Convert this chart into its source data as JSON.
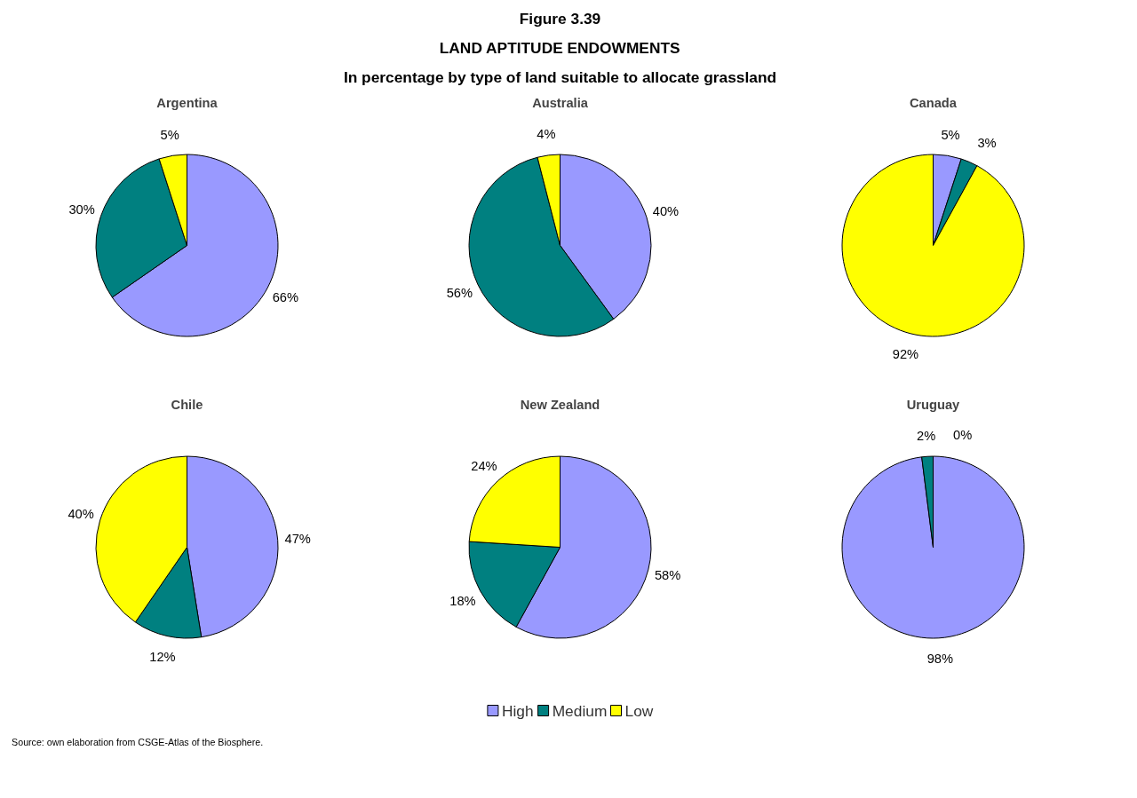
{
  "chart_data": [
    {
      "type": "other",
      "title": "Figure 3.39",
      "annotations": [
        "LAND APTITUDE ENDOWMENTS",
        "In percentage by type of land suitable to allocate grassland"
      ]
    },
    {
      "type": "pie",
      "title": "Argentina",
      "categories": [
        "High",
        "Medium",
        "Low"
      ],
      "values": [
        66,
        30,
        5
      ],
      "colors": [
        "#9999ff",
        "#008080",
        "#ffff00"
      ],
      "value_labels": [
        "66%",
        "30%",
        "5%"
      ],
      "legend": "bottom"
    },
    {
      "type": "pie",
      "title": "Australia",
      "categories": [
        null,
        null,
        null
      ],
      "values": [
        40,
        56,
        4
      ],
      "colors": [
        "#9999ff",
        "#008080",
        "#ffff00"
      ],
      "value_labels": [
        "40%",
        "56%",
        "4%"
      ]
    },
    {
      "type": "pie",
      "title": "Canada",
      "categories": [
        null,
        null,
        null
      ],
      "values": [
        5,
        3,
        92
      ],
      "colors": [
        "#9999ff",
        "#008080",
        "#ffff00"
      ],
      "value_labels": [
        "5%",
        "3%",
        "92%"
      ]
    },
    {
      "type": "pie",
      "title": "Chile",
      "categories": [
        null,
        null,
        null
      ],
      "values": [
        47,
        12,
        40
      ],
      "colors": [
        "#9999ff",
        "#008080",
        "#ffff00"
      ],
      "value_labels": [
        "47%",
        "12%",
        "40%"
      ]
    },
    {
      "type": "pie",
      "title": "New Zealand",
      "categories": [
        null,
        null,
        null
      ],
      "values": [
        58,
        18,
        24
      ],
      "colors": [
        "#9999ff",
        "#008080",
        "#ffff00"
      ],
      "value_labels": [
        "58%",
        "18%",
        "24%"
      ]
    },
    {
      "type": "pie",
      "title": "Uruguay",
      "categories": [
        null,
        null,
        null
      ],
      "values": [
        98,
        2,
        0
      ],
      "colors": [
        "#9999ff",
        "#008080",
        "#ffff00"
      ],
      "value_labels": [
        "98%",
        "2%",
        "0%"
      ]
    },
    {
      "type": "other",
      "annotations": [
        "Source: own elaboration from CSGE-Atlas of the Biosphere."
      ]
    }
  ]
}
